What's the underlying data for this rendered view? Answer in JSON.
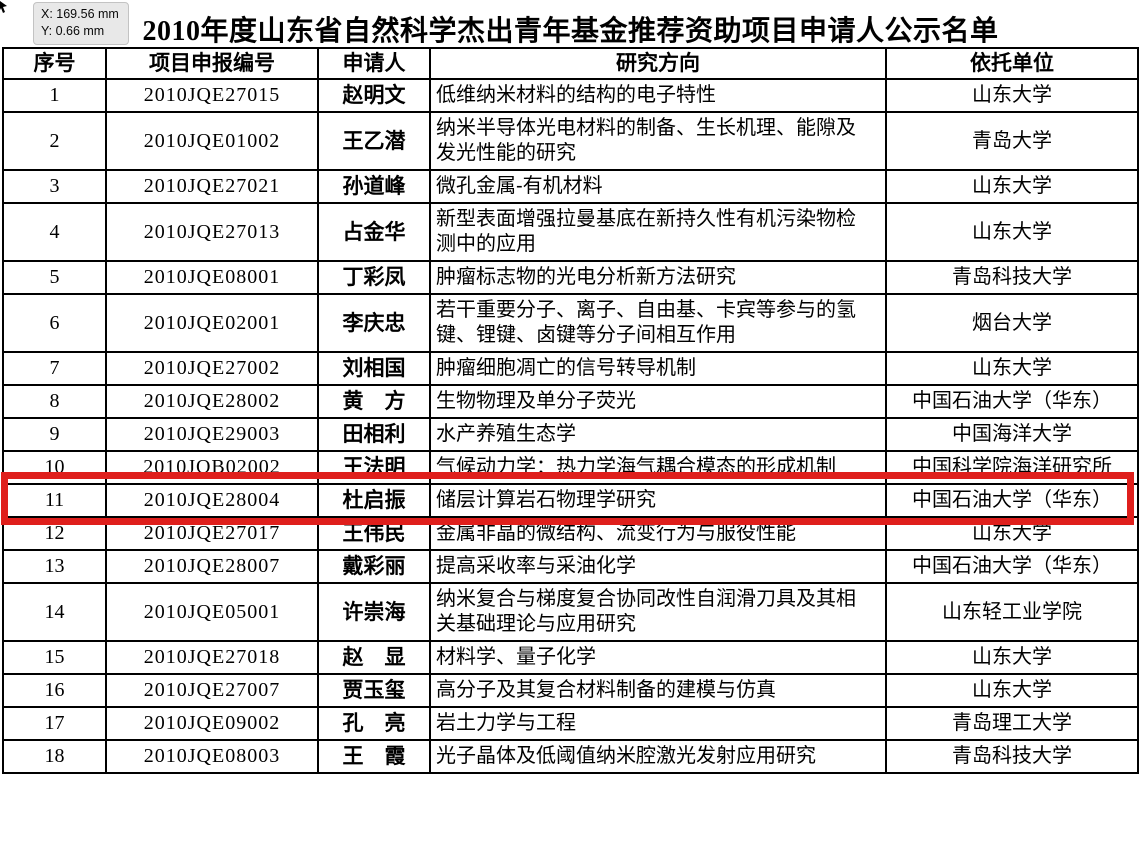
{
  "tooltip": {
    "x_label": "X: 169.56 mm",
    "y_label": "Y: 0.66 mm"
  },
  "title": "2010年度山东省自然科学杰出青年基金推荐资助项目申请人公示名单",
  "table": {
    "headers": [
      "序号",
      "项目申报编号",
      "申请人",
      "研究方向",
      "依托单位"
    ],
    "rows": [
      {
        "no": "1",
        "code": "2010JQE27015",
        "name": "赵明文",
        "research": "低维纳米材料的结构的电子特性",
        "institution": "山东大学"
      },
      {
        "no": "2",
        "code": "2010JQE01002",
        "name": "王乙潜",
        "research": "纳米半导体光电材料的制备、生长机理、能隙及发光性能的研究",
        "institution": "青岛大学"
      },
      {
        "no": "3",
        "code": "2010JQE27021",
        "name": "孙道峰",
        "research": "微孔金属-有机材料",
        "institution": "山东大学"
      },
      {
        "no": "4",
        "code": "2010JQE27013",
        "name": "占金华",
        "research": "新型表面增强拉曼基底在新持久性有机污染物检测中的应用",
        "institution": "山东大学"
      },
      {
        "no": "5",
        "code": "2010JQE08001",
        "name": "丁彩凤",
        "research": "肿瘤标志物的光电分析新方法研究",
        "institution": "青岛科技大学"
      },
      {
        "no": "6",
        "code": "2010JQE02001",
        "name": "李庆忠",
        "research": "若干重要分子、离子、自由基、卡宾等参与的氢键、锂键、卤键等分子间相互作用",
        "institution": "烟台大学"
      },
      {
        "no": "7",
        "code": "2010JQE27002",
        "name": "刘相国",
        "research": "肿瘤细胞凋亡的信号转导机制",
        "institution": "山东大学"
      },
      {
        "no": "8",
        "code": "2010JQE28002",
        "name": "黄　方",
        "research": "生物物理及单分子荧光",
        "institution": "中国石油大学（华东）"
      },
      {
        "no": "9",
        "code": "2010JQE29003",
        "name": "田相利",
        "research": "水产养殖生态学",
        "institution": "中国海洋大学"
      },
      {
        "no": "10",
        "code": "2010JQB02002",
        "name": "王法明",
        "research": "气候动力学：热力学海气耦合模态的形成机制",
        "institution": "中国科学院海洋研究所"
      },
      {
        "no": "11",
        "code": "2010JQE28004",
        "name": "杜启振",
        "research": "储层计算岩石物理学研究",
        "institution": "中国石油大学（华东）"
      },
      {
        "no": "12",
        "code": "2010JQE27017",
        "name": "王伟民",
        "research": "金属非晶的微结构、流变行为与服役性能",
        "institution": "山东大学"
      },
      {
        "no": "13",
        "code": "2010JQE28007",
        "name": "戴彩丽",
        "research": "提高采收率与采油化学",
        "institution": "中国石油大学（华东）"
      },
      {
        "no": "14",
        "code": "2010JQE05001",
        "name": "许崇海",
        "research": "纳米复合与梯度复合协同改性自润滑刀具及其相关基础理论与应用研究",
        "institution": "山东轻工业学院"
      },
      {
        "no": "15",
        "code": "2010JQE27018",
        "name": "赵　显",
        "research": "材料学、量子化学",
        "institution": "山东大学"
      },
      {
        "no": "16",
        "code": "2010JQE27007",
        "name": "贾玉玺",
        "research": "高分子及其复合材料制备的建模与仿真",
        "institution": "山东大学"
      },
      {
        "no": "17",
        "code": "2010JQE09002",
        "name": "孔　亮",
        "research": "岩土力学与工程",
        "institution": "青岛理工大学"
      },
      {
        "no": "18",
        "code": "2010JQE08003",
        "name": "王　霞",
        "research": "光子晶体及低阈值纳米腔激光发射应用研究",
        "institution": "青岛科技大学"
      }
    ]
  },
  "highlight": {
    "row_no": "11",
    "color": "#df1f1c"
  }
}
